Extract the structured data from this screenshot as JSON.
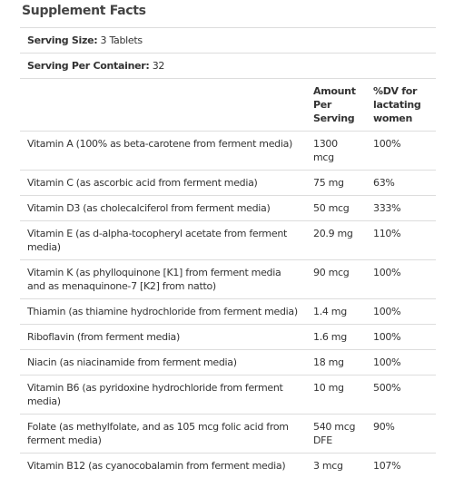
{
  "header": {
    "title": "Supplement Facts"
  },
  "serving_size": {
    "label": "Serving Size:",
    "value": "3 Tablets"
  },
  "servings_per_container": {
    "label": "Serving Per Container:",
    "value": "32"
  },
  "table": {
    "columns": [
      "Amount Per Serving",
      "%DV for lactating women"
    ],
    "rows": [
      [
        "Vitamin A (100% as beta-carotene from ferment media)",
        "1300 mcg",
        "100%"
      ],
      [
        "Vitamin C (as ascorbic acid from ferment media)",
        "75 mg",
        "63%"
      ],
      [
        "Vitamin D3 (as cholecalciferol from ferment media)",
        "50 mcg",
        "333%"
      ],
      [
        "Vitamin E (as d-alpha-tocopheryl acetate from ferment media)",
        "20.9 mg",
        "110%"
      ],
      [
        "Vitamin K (as phylloquinone [K1] from ferment media and as menaquinone-7 [K2] from natto)",
        "90 mcg",
        "100%"
      ],
      [
        "Thiamin (as thiamine hydrochloride from ferment media)",
        "1.4 mg",
        "100%"
      ],
      [
        "Riboflavin (from ferment media)",
        "1.6 mg",
        "100%"
      ],
      [
        "Niacin (as niacinamide from ferment media)",
        "18 mg",
        "100%"
      ],
      [
        "Vitamin B6 (as pyridoxine hydrochloride from ferment media)",
        "10 mg",
        "500%"
      ],
      [
        "Folate (as methylfolate, and as 105 mcg folic acid from ferment media)",
        "540 mcg DFE",
        "90%"
      ],
      [
        "Vitamin B12 (as cyanocobalamin from ferment media)",
        "3 mcg",
        "107%"
      ]
    ]
  }
}
